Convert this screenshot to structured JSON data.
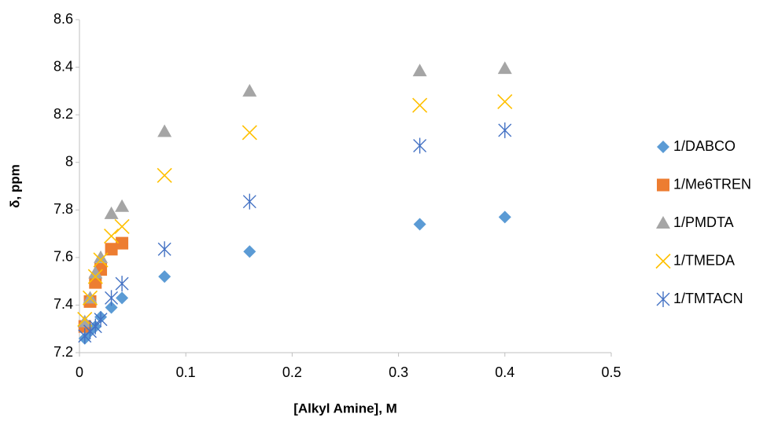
{
  "chart_data": {
    "type": "scatter",
    "xlabel": "[Alkyl Amine], M",
    "ylabel": "δ, ppm",
    "xlim": [
      0,
      0.5
    ],
    "xticks": [
      0,
      0.1,
      0.2,
      0.3,
      0.4,
      0.5
    ],
    "ylim": [
      7.2,
      8.6
    ],
    "yticks": [
      7.2,
      7.4,
      7.6,
      7.8,
      8,
      8.2,
      8.4,
      8.6
    ],
    "grid": false,
    "legend": "right",
    "series": [
      {
        "name": "1/DABCO",
        "color": "#5b9bd5",
        "marker": "diamond",
        "x": [
          0.005,
          0.01,
          0.015,
          0.02,
          0.03,
          0.04,
          0.08,
          0.16,
          0.32,
          0.4
        ],
        "values": [
          7.26,
          7.29,
          7.31,
          7.35,
          7.39,
          7.43,
          7.52,
          7.625,
          7.74,
          7.77
        ]
      },
      {
        "name": "1/Me6TREN",
        "color": "#ed7d31",
        "marker": "square",
        "x": [
          0.005,
          0.01,
          0.015,
          0.02,
          0.03,
          0.04
        ],
        "values": [
          7.31,
          7.415,
          7.495,
          7.55,
          7.635,
          7.66
        ]
      },
      {
        "name": "1/PMDTA",
        "color": "#a5a5a5",
        "marker": "triangle",
        "x": [
          0.005,
          0.01,
          0.015,
          0.02,
          0.03,
          0.04,
          0.08,
          0.16,
          0.32,
          0.4
        ],
        "values": [
          7.33,
          7.43,
          7.535,
          7.6,
          7.785,
          7.815,
          8.13,
          8.3,
          8.385,
          8.395
        ]
      },
      {
        "name": "1/TMEDA",
        "color": "#ffc000",
        "marker": "x",
        "x": [
          0.005,
          0.01,
          0.015,
          0.02,
          0.03,
          0.04,
          0.08,
          0.16,
          0.32,
          0.4
        ],
        "values": [
          7.34,
          7.43,
          7.52,
          7.59,
          7.69,
          7.73,
          7.945,
          8.125,
          8.24,
          8.255
        ]
      },
      {
        "name": "1/TMTACN",
        "color": "#4472c4",
        "marker": "star",
        "x": [
          0.005,
          0.01,
          0.015,
          0.02,
          0.03,
          0.04,
          0.08,
          0.16,
          0.32,
          0.4
        ],
        "values": [
          7.27,
          7.29,
          7.31,
          7.34,
          7.43,
          7.49,
          7.635,
          7.835,
          8.07,
          8.135
        ]
      }
    ]
  }
}
